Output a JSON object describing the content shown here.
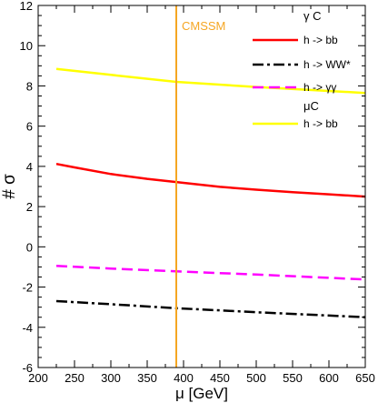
{
  "chart_data": {
    "type": "line",
    "xlabel": "μ [GeV]",
    "ylabel": "# σ",
    "xlim": [
      200,
      650
    ],
    "ylim": [
      -6,
      12
    ],
    "x_ticks": [
      200,
      250,
      300,
      350,
      400,
      450,
      500,
      550,
      600,
      650
    ],
    "y_ticks": [
      -6,
      -4,
      -2,
      0,
      2,
      4,
      6,
      8,
      10,
      12
    ],
    "grid": false,
    "legend_position": "top-right",
    "vline": {
      "x": 390,
      "label": "CMSSM",
      "color": "#f5a623"
    },
    "legend_groups": [
      {
        "header": "γ C",
        "entries": [
          0,
          1,
          2
        ]
      },
      {
        "header": "μC",
        "entries": [
          3
        ]
      }
    ],
    "series": [
      {
        "name": "h -> bb",
        "color": "#ff0000",
        "dash": "solid",
        "x": [
          225,
          250,
          300,
          350,
          390,
          450,
          500,
          550,
          600,
          650
        ],
        "values": [
          4.12,
          3.95,
          3.62,
          3.38,
          3.22,
          2.98,
          2.84,
          2.72,
          2.61,
          2.5
        ]
      },
      {
        "name": "h -> WW*",
        "color": "#000000",
        "dash": "dashdot",
        "x": [
          225,
          300,
          390,
          500,
          650
        ],
        "values": [
          -2.7,
          -2.85,
          -3.05,
          -3.25,
          -3.5
        ]
      },
      {
        "name": "h -> γγ",
        "color": "#ff00ff",
        "dash": "dashed",
        "x": [
          225,
          300,
          390,
          500,
          650
        ],
        "values": [
          -0.95,
          -1.08,
          -1.22,
          -1.38,
          -1.62
        ]
      },
      {
        "name": "h -> bb",
        "color": "#ffff00",
        "dash": "solid",
        "x": [
          225,
          300,
          390,
          500,
          650
        ],
        "values": [
          8.85,
          8.55,
          8.2,
          7.95,
          7.65
        ]
      }
    ]
  }
}
